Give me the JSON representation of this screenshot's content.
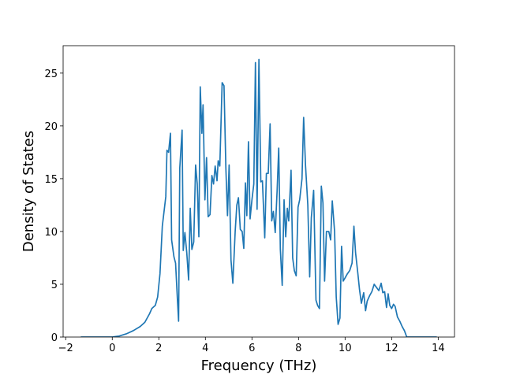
{
  "chart_data": {
    "type": "line",
    "xlabel": "Frequency (THz)",
    "ylabel": "Density of States",
    "xlim": [
      -2.11,
      14.7
    ],
    "ylim": [
      0,
      27.6
    ],
    "xticks": [
      {
        "value": -2,
        "label": "−2"
      },
      0,
      2,
      4,
      6,
      8,
      10,
      12,
      14
    ],
    "yticks": [
      0,
      5,
      10,
      15,
      20,
      25
    ],
    "series": [
      {
        "color": "#1f77b4",
        "x": [
          -1.35,
          0,
          0.3,
          0.6,
          0.9,
          1.2,
          1.4,
          1.5,
          1.6,
          1.7,
          1.85,
          1.95,
          2.05,
          2.15,
          2.3,
          2.35,
          2.42,
          2.5,
          2.55,
          2.65,
          2.72,
          2.8,
          2.85,
          2.9,
          3.0,
          3.05,
          3.12,
          3.2,
          3.28,
          3.35,
          3.42,
          3.5,
          3.58,
          3.65,
          3.72,
          3.78,
          3.85,
          3.9,
          3.98,
          4.05,
          4.12,
          4.2,
          4.28,
          4.35,
          4.42,
          4.5,
          4.55,
          4.62,
          4.72,
          4.8,
          4.88,
          4.95,
          5.02,
          5.1,
          5.18,
          5.28,
          5.35,
          5.42,
          5.5,
          5.58,
          5.65,
          5.72,
          5.78,
          5.85,
          5.92,
          6.0,
          6.08,
          6.15,
          6.22,
          6.3,
          6.38,
          6.45,
          6.55,
          6.62,
          6.7,
          6.78,
          6.85,
          6.92,
          7.0,
          7.08,
          7.15,
          7.22,
          7.3,
          7.38,
          7.45,
          7.52,
          7.58,
          7.68,
          7.75,
          7.82,
          7.9,
          7.98,
          8.05,
          8.15,
          8.22,
          8.3,
          8.4,
          8.48,
          8.55,
          8.65,
          8.75,
          8.82,
          8.9,
          8.98,
          9.05,
          9.12,
          9.2,
          9.3,
          9.38,
          9.45,
          9.55,
          9.62,
          9.7,
          9.78,
          9.85,
          9.92,
          10.0,
          10.1,
          10.2,
          10.3,
          10.38,
          10.45,
          10.55,
          10.62,
          10.7,
          10.8,
          10.88,
          10.95,
          11.05,
          11.15,
          11.25,
          11.35,
          11.45,
          11.55,
          11.62,
          11.7,
          11.78,
          11.85,
          11.92,
          12.0,
          12.08,
          12.15,
          12.25,
          12.35,
          12.45,
          12.55,
          12.65,
          13.94
        ],
        "values": [
          0,
          0,
          0.1,
          0.3,
          0.6,
          1.0,
          1.4,
          1.8,
          2.2,
          2.7,
          3.0,
          3.8,
          6,
          10.5,
          13.3,
          17.7,
          17.5,
          19.3,
          9.2,
          7.6,
          7.0,
          3.5,
          1.5,
          16,
          19.6,
          8.2,
          9.9,
          8.0,
          5.4,
          12.2,
          8.3,
          9.0,
          16.3,
          14.5,
          9.5,
          23.7,
          19.3,
          22.0,
          13.0,
          17.0,
          11.4,
          11.6,
          15.3,
          14.5,
          16.2,
          14.8,
          16.7,
          16.2,
          24.1,
          23.8,
          16.0,
          11.5,
          16.3,
          7.3,
          5.1,
          10.0,
          12.5,
          13.2,
          10.2,
          10.0,
          8.4,
          14.6,
          11.5,
          18.5,
          11.2,
          13.0,
          14.5,
          26.0,
          12.1,
          26.3,
          14.7,
          14.8,
          9.4,
          15.5,
          15.5,
          20.2,
          11.0,
          11.9,
          9.9,
          13.8,
          17.9,
          8.3,
          4.9,
          13.0,
          9.5,
          12.2,
          11.0,
          15.8,
          7.5,
          6.3,
          5.8,
          12.3,
          13.0,
          15.0,
          20.8,
          16.3,
          12.5,
          5.7,
          11.3,
          13.9,
          3.5,
          3.0,
          2.7,
          14.3,
          12.7,
          5.3,
          10.0,
          10.0,
          9.2,
          12.9,
          10.0,
          3.8,
          1.2,
          1.8,
          8.6,
          5.3,
          5.6,
          6.0,
          6.3,
          7.0,
          10.5,
          8.0,
          6.0,
          4.5,
          3.2,
          4.2,
          2.5,
          3.4,
          3.9,
          4.3,
          5.0,
          4.7,
          4.4,
          5.1,
          4.2,
          4.3,
          2.8,
          4.1,
          3.0,
          2.7,
          3.1,
          2.9,
          1.9,
          1.5,
          1.0,
          0.6,
          0,
          0
        ]
      }
    ]
  }
}
